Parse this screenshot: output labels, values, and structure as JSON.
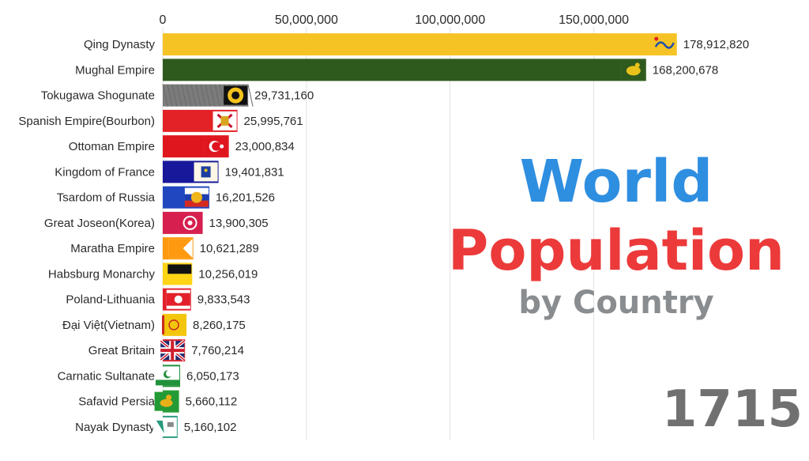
{
  "colors": {
    "title_world": "#2e8ee0",
    "title_population": "#ec3a3a",
    "title_by_country": "#8a8d90",
    "year": "#707070",
    "axis_line": "#e0e0e0",
    "text": "#2a2a2a"
  },
  "title": {
    "line1": "World",
    "line2": "Population",
    "line3": "by Country"
  },
  "year": "1715",
  "chart_data": {
    "type": "bar",
    "orientation": "horizontal",
    "xlim": [
      0,
      193000000
    ],
    "xticks": [
      0,
      50000000,
      100000000,
      150000000
    ],
    "xtick_labels": [
      "0",
      "50,000,000",
      "100,000,000",
      "150,000,000"
    ],
    "grid": true,
    "categories": [
      "Qing Dynasty",
      "Mughal Empire",
      "Tokugawa Shogunate",
      "Spanish Empire(Bourbon)",
      "Ottoman Empire",
      "Kingdom of France",
      "Tsardom of Russia",
      "Great Joseon(Korea)",
      "Maratha Empire",
      "Habsburg Monarchy",
      "Poland-Lithuania",
      "Đại Việt(Vietnam)",
      "Great Britain",
      "Carnatic Sultanate",
      "Safavid Persia",
      "Nayak Dynasty"
    ],
    "values": [
      178912820,
      168200678,
      29731160,
      25995761,
      23000834,
      19401831,
      16201526,
      13900305,
      10621289,
      10256019,
      9833543,
      8260175,
      7760214,
      6050173,
      5660112,
      5160102
    ],
    "value_labels": [
      "178,912,820",
      "168,200,678",
      "29,731,160",
      "25,995,761",
      "23,000,834",
      "19,401,831",
      "16,201,526",
      "13,900,305",
      "10,621,289",
      "10,256,019",
      "9,833,543",
      "8,260,175",
      "7,760,214",
      "6,050,173",
      "5,660,112",
      "5,160,102"
    ],
    "bar_colors": [
      "#f6c324",
      "#2f5a1d",
      "#7b7b7b",
      "#e32227",
      "#e0161f",
      "#17189a",
      "#2046c0",
      "#d61f4e",
      "#ff9a10",
      "#ffd414",
      "#e3202a",
      "#f3c60d",
      "#d7262f",
      "#21913b",
      "#249a35",
      "#2b9a7e"
    ],
    "flag_icons": [
      "qing-dragon-flag-icon",
      "mughal-lion-flag-icon",
      "tokugawa-mon-flag-icon",
      "spanish-bourbon-arms-icon",
      "ottoman-crescent-flag-icon",
      "france-fleur-de-lis-flag-icon",
      "russia-eagle-flag-icon",
      "joseon-flag-icon",
      "maratha-pennant-icon",
      "habsburg-flag-icon",
      "poland-lithuania-flag-icon",
      "dai-viet-flag-icon",
      "union-jack-icon",
      "carnatic-crescent-flag-icon",
      "safavid-lion-flag-icon",
      "nayak-flag-icon"
    ]
  }
}
